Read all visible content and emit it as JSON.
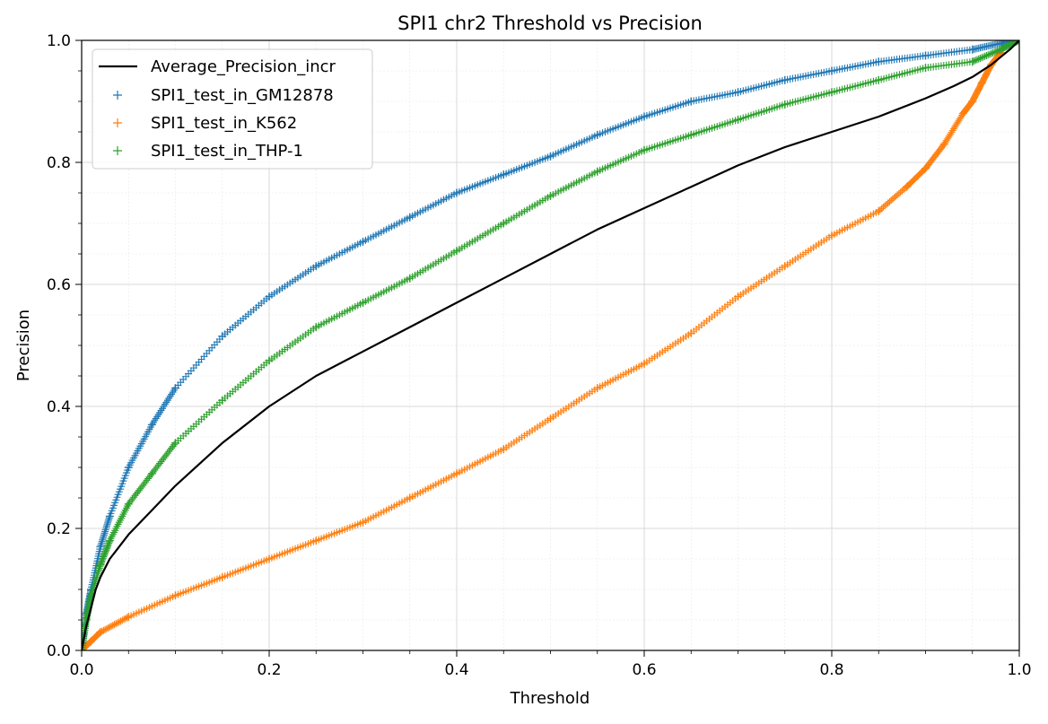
{
  "chart_data": {
    "type": "line",
    "title": "SPI1 chr2 Threshold vs Precision",
    "xlabel": "Threshold",
    "ylabel": "Precision",
    "xlim": [
      0.0,
      1.0
    ],
    "ylim": [
      0.0,
      1.0
    ],
    "xticks": [
      0.0,
      0.2,
      0.4,
      0.6,
      0.8,
      1.0
    ],
    "yticks": [
      0.0,
      0.2,
      0.4,
      0.6,
      0.8,
      1.0
    ],
    "xtick_labels": [
      "0.0",
      "0.2",
      "0.4",
      "0.6",
      "0.8",
      "1.0"
    ],
    "ytick_labels": [
      "0.0",
      "0.2",
      "0.4",
      "0.6",
      "0.8",
      "1.0"
    ],
    "grid": {
      "major": true,
      "minor": true
    },
    "legend_position": "top-left",
    "series": [
      {
        "name": "Average_Precision_incr",
        "style": "line",
        "color": "#000000",
        "x": [
          0.0,
          0.005,
          0.01,
          0.015,
          0.02,
          0.03,
          0.05,
          0.075,
          0.1,
          0.15,
          0.2,
          0.25,
          0.3,
          0.35,
          0.4,
          0.45,
          0.5,
          0.55,
          0.6,
          0.65,
          0.7,
          0.75,
          0.8,
          0.85,
          0.9,
          0.93,
          0.95,
          0.97,
          0.99,
          1.0
        ],
        "y": [
          0.0,
          0.04,
          0.07,
          0.1,
          0.12,
          0.15,
          0.19,
          0.23,
          0.27,
          0.34,
          0.4,
          0.45,
          0.49,
          0.53,
          0.57,
          0.61,
          0.65,
          0.69,
          0.725,
          0.76,
          0.795,
          0.825,
          0.85,
          0.875,
          0.905,
          0.925,
          0.94,
          0.96,
          0.985,
          1.0
        ]
      },
      {
        "name": "SPI1_test_in_GM12878",
        "style": "markers",
        "marker": "+",
        "color": "#1f77b4",
        "x": [
          0.0,
          0.005,
          0.01,
          0.02,
          0.03,
          0.05,
          0.075,
          0.1,
          0.15,
          0.2,
          0.25,
          0.3,
          0.35,
          0.4,
          0.45,
          0.5,
          0.55,
          0.6,
          0.65,
          0.7,
          0.75,
          0.8,
          0.85,
          0.9,
          0.95,
          0.98,
          1.0
        ],
        "y": [
          0.0,
          0.06,
          0.1,
          0.17,
          0.22,
          0.3,
          0.37,
          0.43,
          0.515,
          0.58,
          0.63,
          0.67,
          0.71,
          0.75,
          0.78,
          0.81,
          0.845,
          0.875,
          0.9,
          0.915,
          0.935,
          0.95,
          0.965,
          0.975,
          0.985,
          0.995,
          1.0
        ]
      },
      {
        "name": "SPI1_test_in_K562",
        "style": "markers",
        "marker": "+",
        "color": "#ff7f0e",
        "x": [
          0.0,
          0.01,
          0.02,
          0.05,
          0.1,
          0.15,
          0.2,
          0.25,
          0.3,
          0.35,
          0.4,
          0.45,
          0.5,
          0.55,
          0.6,
          0.65,
          0.7,
          0.75,
          0.8,
          0.85,
          0.88,
          0.9,
          0.92,
          0.94,
          0.95,
          0.96,
          0.97,
          0.98
        ],
        "y": [
          0.0,
          0.015,
          0.03,
          0.055,
          0.09,
          0.12,
          0.15,
          0.18,
          0.21,
          0.25,
          0.29,
          0.33,
          0.38,
          0.43,
          0.47,
          0.52,
          0.58,
          0.63,
          0.68,
          0.72,
          0.76,
          0.79,
          0.83,
          0.88,
          0.9,
          0.93,
          0.96,
          0.98
        ]
      },
      {
        "name": "SPI1_test_in_THP-1",
        "style": "markers",
        "marker": "+",
        "color": "#2ca02c",
        "x": [
          0.0,
          0.005,
          0.01,
          0.02,
          0.03,
          0.05,
          0.075,
          0.1,
          0.15,
          0.2,
          0.25,
          0.3,
          0.35,
          0.4,
          0.45,
          0.5,
          0.55,
          0.6,
          0.65,
          0.7,
          0.75,
          0.8,
          0.85,
          0.9,
          0.95,
          0.98,
          1.0
        ],
        "y": [
          0.0,
          0.05,
          0.09,
          0.14,
          0.18,
          0.24,
          0.29,
          0.34,
          0.41,
          0.475,
          0.53,
          0.57,
          0.61,
          0.655,
          0.7,
          0.745,
          0.785,
          0.82,
          0.845,
          0.87,
          0.895,
          0.915,
          0.935,
          0.955,
          0.965,
          0.985,
          1.0
        ]
      }
    ]
  }
}
